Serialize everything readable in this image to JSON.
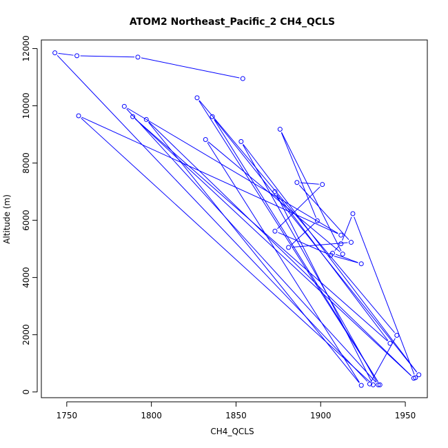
{
  "chart_data": {
    "type": "scatter",
    "title": "ATOM2 Northeast_Pacific_2 CH4_QCLS",
    "xlabel": "CH4_QCLS",
    "ylabel": "Altitude (m)",
    "xlim": [
      1735,
      1963
    ],
    "ylim": [
      -200,
      12300
    ],
    "xticks": [
      1750,
      1800,
      1850,
      1900,
      1950
    ],
    "yticks": [
      0,
      2000,
      4000,
      6000,
      8000,
      10000,
      12000
    ],
    "grid": false,
    "connected": true,
    "series": [
      {
        "color": "#0000ff",
        "x": [
          1854,
          1792,
          1756,
          1743,
          1929,
          1945,
          1827,
          1935,
          1836,
          1958,
          1853,
          1934,
          1784,
          1912,
          1757,
          1931,
          1873,
          1941,
          1789,
          1955,
          1797,
          1924,
          1832,
          1913,
          1876,
          1898,
          1881,
          1918,
          1886,
          1901,
          1873,
          1906,
          1924,
          1907,
          1912,
          1919,
          1956
        ],
        "y": [
          10950,
          11700,
          11750,
          11850,
          280,
          1980,
          10280,
          250,
          9620,
          600,
          8750,
          250,
          9980,
          5480,
          9650,
          250,
          7000,
          1700,
          9620,
          480,
          9520,
          230,
          8820,
          4820,
          9180,
          5980,
          5050,
          5230,
          7320,
          7250,
          5620,
          4780,
          4480,
          4850,
          5180,
          6230,
          500
        ]
      }
    ]
  }
}
